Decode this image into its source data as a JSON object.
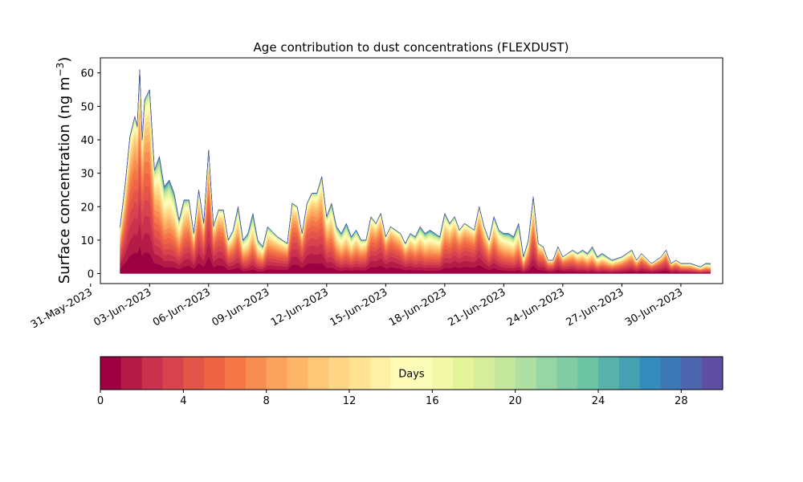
{
  "chart_data": {
    "type": "area",
    "title": "Age contribution to dust concentrations (FLEXDUST)",
    "ylabel_main": "Surface concentration (ng m",
    "ylabel_sup": "−3",
    "ylabel_close": ")",
    "xlabel": "",
    "ylim": [
      -3,
      64.5
    ],
    "xlim": [
      "2023-05-31T12:00",
      "2023-07-02T03:00"
    ],
    "grid": false,
    "y_ticks": [
      0,
      10,
      20,
      30,
      40,
      50,
      60
    ],
    "x_ticks": [
      {
        "date": "2023-05-31",
        "label": "31-May-2023"
      },
      {
        "date": "2023-06-03",
        "label": "03-Jun-2023"
      },
      {
        "date": "2023-06-06",
        "label": "06-Jun-2023"
      },
      {
        "date": "2023-06-09",
        "label": "09-Jun-2023"
      },
      {
        "date": "2023-06-12",
        "label": "12-Jun-2023"
      },
      {
        "date": "2023-06-15",
        "label": "15-Jun-2023"
      },
      {
        "date": "2023-06-18",
        "label": "18-Jun-2023"
      },
      {
        "date": "2023-06-21",
        "label": "21-Jun-2023"
      },
      {
        "date": "2023-06-24",
        "label": "24-Jun-2023"
      },
      {
        "date": "2023-06-27",
        "label": "27-Jun-2023"
      },
      {
        "date": "2023-06-30",
        "label": "30-Jun-2023"
      }
    ],
    "series_note": "30 stacked age classes (0-30 days); series name = age in days",
    "total": {
      "x": [
        "2023-06-01T12:00",
        "2023-06-01T18:00",
        "2023-06-02T00:00",
        "2023-06-02T06:00",
        "2023-06-02T09:00",
        "2023-06-02T12:00",
        "2023-06-02T15:00",
        "2023-06-02T18:00",
        "2023-06-03T00:00",
        "2023-06-03T06:00",
        "2023-06-03T09:00",
        "2023-06-03T12:00",
        "2023-06-03T18:00",
        "2023-06-04T00:00",
        "2023-06-04T06:00",
        "2023-06-04T12:00",
        "2023-06-04T18:00",
        "2023-06-05T00:00",
        "2023-06-05T06:00",
        "2023-06-05T12:00",
        "2023-06-05T18:00",
        "2023-06-06T00:00",
        "2023-06-06T06:00",
        "2023-06-06T12:00",
        "2023-06-06T18:00",
        "2023-06-07T00:00",
        "2023-06-07T06:00",
        "2023-06-07T12:00",
        "2023-06-07T18:00",
        "2023-06-08T00:00",
        "2023-06-08T06:00",
        "2023-06-08T12:00",
        "2023-06-08T18:00",
        "2023-06-09T00:00",
        "2023-06-09T12:00",
        "2023-06-10T00:00",
        "2023-06-10T06:00",
        "2023-06-10T12:00",
        "2023-06-10T18:00",
        "2023-06-11T00:00",
        "2023-06-11T06:00",
        "2023-06-11T12:00",
        "2023-06-11T18:00",
        "2023-06-12T00:00",
        "2023-06-12T06:00",
        "2023-06-12T12:00",
        "2023-06-12T18:00",
        "2023-06-13T00:00",
        "2023-06-13T06:00",
        "2023-06-13T12:00",
        "2023-06-13T18:00",
        "2023-06-14T00:00",
        "2023-06-14T06:00",
        "2023-06-14T12:00",
        "2023-06-14T18:00",
        "2023-06-15T00:00",
        "2023-06-15T06:00",
        "2023-06-15T12:00",
        "2023-06-15T18:00",
        "2023-06-16T00:00",
        "2023-06-16T06:00",
        "2023-06-16T12:00",
        "2023-06-16T18:00",
        "2023-06-17T00:00",
        "2023-06-17T06:00",
        "2023-06-17T12:00",
        "2023-06-17T18:00",
        "2023-06-18T00:00",
        "2023-06-18T06:00",
        "2023-06-18T12:00",
        "2023-06-18T18:00",
        "2023-06-19T00:00",
        "2023-06-19T06:00",
        "2023-06-19T12:00",
        "2023-06-19T18:00",
        "2023-06-20T00:00",
        "2023-06-20T06:00",
        "2023-06-20T12:00",
        "2023-06-20T18:00",
        "2023-06-21T00:00",
        "2023-06-21T06:00",
        "2023-06-21T12:00",
        "2023-06-21T18:00",
        "2023-06-22T00:00",
        "2023-06-22T06:00",
        "2023-06-22T12:00",
        "2023-06-22T18:00",
        "2023-06-23T00:00",
        "2023-06-23T06:00",
        "2023-06-23T12:00",
        "2023-06-23T18:00",
        "2023-06-24T00:00",
        "2023-06-24T06:00",
        "2023-06-24T12:00",
        "2023-06-24T18:00",
        "2023-06-25T00:00",
        "2023-06-25T06:00",
        "2023-06-25T12:00",
        "2023-06-25T18:00",
        "2023-06-26T00:00",
        "2023-06-26T12:00",
        "2023-06-27T00:00",
        "2023-06-27T12:00",
        "2023-06-27T18:00",
        "2023-06-28T00:00",
        "2023-06-28T12:00",
        "2023-06-29T00:00",
        "2023-06-29T06:00",
        "2023-06-29T12:00",
        "2023-06-29T18:00",
        "2023-06-30T00:00",
        "2023-06-30T12:00",
        "2023-07-01T00:00",
        "2023-07-01T06:00",
        "2023-07-01T12:00"
      ],
      "values": [
        14,
        26,
        41,
        47,
        44,
        61,
        40,
        52,
        55,
        31,
        33,
        35,
        26,
        28,
        24,
        16,
        22,
        22,
        12,
        25,
        15,
        37,
        14,
        19,
        19,
        10,
        13,
        20,
        10,
        12,
        18,
        10,
        8,
        14,
        11,
        9,
        21,
        20,
        12,
        21,
        24,
        24,
        29,
        17,
        21,
        14,
        12,
        15,
        11,
        13,
        10,
        10,
        17,
        15,
        18,
        11,
        14,
        13,
        12,
        9,
        12,
        11,
        14,
        12,
        13,
        12,
        11,
        18,
        15,
        17,
        13,
        15,
        14,
        13,
        20,
        14,
        10,
        17,
        13,
        12,
        12,
        11,
        15,
        5,
        10,
        23,
        9,
        8,
        4,
        4,
        8,
        5,
        6,
        7,
        6,
        7,
        6,
        8,
        5,
        6,
        4,
        5,
        7,
        4,
        6,
        3,
        5,
        7,
        3,
        4,
        3,
        3,
        2,
        3,
        3
      ]
    },
    "bands": [
      {
        "from": 0,
        "to": 1,
        "color": "#9e0142"
      },
      {
        "from": 1,
        "to": 2,
        "color": "#b41c47"
      },
      {
        "from": 2,
        "to": 3,
        "color": "#c9314c"
      },
      {
        "from": 3,
        "to": 4,
        "color": "#d8434e"
      },
      {
        "from": 4,
        "to": 5,
        "color": "#e35449"
      },
      {
        "from": 5,
        "to": 6,
        "color": "#ee6445"
      },
      {
        "from": 6,
        "to": 7,
        "color": "#f57748"
      },
      {
        "from": 7,
        "to": 8,
        "color": "#f88d51"
      },
      {
        "from": 8,
        "to": 9,
        "color": "#fba35c"
      },
      {
        "from": 9,
        "to": 10,
        "color": "#fdb667"
      },
      {
        "from": 10,
        "to": 11,
        "color": "#fdc776"
      },
      {
        "from": 11,
        "to": 12,
        "color": "#fed685"
      },
      {
        "from": 12,
        "to": 13,
        "color": "#fee393"
      },
      {
        "from": 13,
        "to": 14,
        "color": "#fff0a6"
      },
      {
        "from": 14,
        "to": 15,
        "color": "#fffcb8"
      },
      {
        "from": 15,
        "to": 16,
        "color": "#fbfdb7"
      },
      {
        "from": 16,
        "to": 17,
        "color": "#f1f9a9"
      },
      {
        "from": 17,
        "to": 18,
        "color": "#e5f499"
      },
      {
        "from": 18,
        "to": 19,
        "color": "#d6ee9b"
      },
      {
        "from": 19,
        "to": 20,
        "color": "#c4e79e"
      },
      {
        "from": 20,
        "to": 21,
        "color": "#b0dfa2"
      },
      {
        "from": 21,
        "to": 22,
        "color": "#98d5a4"
      },
      {
        "from": 22,
        "to": 23,
        "color": "#81cca5"
      },
      {
        "from": 23,
        "to": 24,
        "color": "#6cc4a5"
      },
      {
        "from": 24,
        "to": 25,
        "color": "#58b2ab"
      },
      {
        "from": 25,
        "to": 26,
        "color": "#45a1b2"
      },
      {
        "from": 26,
        "to": 27,
        "color": "#348cbc"
      },
      {
        "from": 27,
        "to": 28,
        "color": "#3e79b7"
      },
      {
        "from": 28,
        "to": 29,
        "color": "#4c65ae"
      },
      {
        "from": 29,
        "to": 30,
        "color": "#5e4fa2"
      }
    ],
    "colorbar": {
      "label": "Days",
      "range": [
        0,
        30
      ],
      "ticks": [
        0,
        4,
        8,
        12,
        16,
        20,
        24,
        28
      ]
    }
  }
}
